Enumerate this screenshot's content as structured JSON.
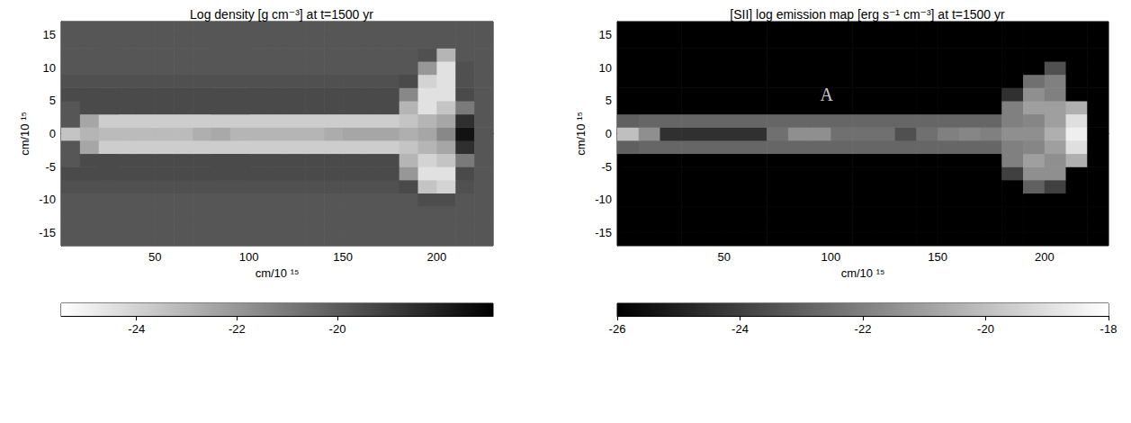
{
  "chart_data": [
    {
      "type": "heatmap",
      "title": "Log density [g cm⁻³] at t=1500 yr",
      "x_label": "cm/10 ¹⁵",
      "y_label": "cm/10 ¹⁵",
      "xlim": [
        0,
        230
      ],
      "ylim": [
        -17,
        17
      ],
      "xticks": [
        50,
        100,
        150,
        200
      ],
      "yticks": [
        -15,
        -10,
        -5,
        0,
        5,
        10,
        15
      ],
      "x_bins": [
        0,
        10,
        20,
        30,
        40,
        50,
        60,
        70,
        80,
        90,
        100,
        110,
        120,
        130,
        140,
        150,
        160,
        170,
        180,
        190,
        200,
        210,
        220,
        230
      ],
      "y_bins": [
        -17,
        -15,
        -13,
        -11,
        -9,
        -7,
        -5,
        -3,
        -1,
        1,
        3,
        5,
        7,
        9,
        11,
        13,
        15,
        17
      ],
      "values": [
        [
          -19.8,
          -19.8,
          -19.8,
          -19.8,
          -19.8,
          -19.8,
          -19.8,
          -19.8,
          -19.8,
          -19.8,
          -19.8,
          -19.8,
          -19.8,
          -19.8,
          -19.8,
          -19.8,
          -19.8,
          -19.8,
          -19.8,
          -19.8,
          -19.8,
          -19.8,
          -19.8
        ],
        [
          -19.8,
          -19.8,
          -19.8,
          -19.8,
          -19.8,
          -19.8,
          -19.8,
          -19.8,
          -19.8,
          -19.8,
          -19.8,
          -19.8,
          -19.8,
          -19.8,
          -19.8,
          -19.8,
          -19.8,
          -19.8,
          -19.8,
          -19.8,
          -19.8,
          -19.8,
          -19.8
        ],
        [
          -19.8,
          -19.8,
          -19.8,
          -19.8,
          -19.8,
          -19.8,
          -19.8,
          -19.8,
          -19.8,
          -19.8,
          -19.8,
          -19.8,
          -19.8,
          -19.8,
          -19.8,
          -19.8,
          -19.8,
          -19.8,
          -19.8,
          -19.8,
          -19.8,
          -19.8,
          -19.8
        ],
        [
          -19.8,
          -19.8,
          -19.8,
          -19.8,
          -19.8,
          -19.8,
          -19.8,
          -19.8,
          -19.8,
          -19.8,
          -19.8,
          -19.8,
          -19.8,
          -19.8,
          -19.8,
          -19.8,
          -19.8,
          -19.8,
          -19.8,
          -19.5,
          -19.5,
          -19.8,
          -19.8
        ],
        [
          -19.6,
          -19.6,
          -19.6,
          -19.6,
          -19.6,
          -19.6,
          -19.6,
          -19.6,
          -19.6,
          -19.6,
          -19.6,
          -19.6,
          -19.6,
          -19.6,
          -19.6,
          -19.6,
          -19.6,
          -19.6,
          -19.4,
          -23.5,
          -24,
          -19.6,
          -19.8
        ],
        [
          -19.4,
          -19.4,
          -19.4,
          -19.4,
          -19.4,
          -19.4,
          -19.4,
          -19.4,
          -19.4,
          -19.4,
          -19.4,
          -19.4,
          -19.4,
          -19.4,
          -19.4,
          -19.4,
          -19.4,
          -19.4,
          -22,
          -24.5,
          -24.5,
          -19.4,
          -19.8
        ],
        [
          -19.8,
          -19.4,
          -19.4,
          -19.4,
          -19.4,
          -19.4,
          -19.4,
          -19.4,
          -19.4,
          -19.4,
          -19.4,
          -19.4,
          -19.4,
          -19.4,
          -19.4,
          -19.4,
          -19.4,
          -19.4,
          -23,
          -24,
          -23.5,
          -21,
          -19.8
        ],
        [
          -19.8,
          -22.5,
          -23.8,
          -23.8,
          -23.8,
          -23.8,
          -23.8,
          -23.8,
          -23.8,
          -23.8,
          -23.8,
          -23.8,
          -23.8,
          -23.8,
          -23.8,
          -23.8,
          -23.8,
          -23.8,
          -23.5,
          -23,
          -22.5,
          -18.5,
          -19.8
        ],
        [
          -23.5,
          -23,
          -23.2,
          -23.2,
          -23.2,
          -23.2,
          -23.2,
          -22.8,
          -22.6,
          -23,
          -23,
          -23,
          -23,
          -23,
          -22.7,
          -22.5,
          -22.5,
          -22.5,
          -22.8,
          -22.5,
          -21.5,
          -17.5,
          -19.8
        ],
        [
          -19.8,
          -22.5,
          -23.8,
          -23.8,
          -23.8,
          -23.8,
          -23.8,
          -23.8,
          -23.8,
          -23.8,
          -23.8,
          -23.8,
          -23.8,
          -23.8,
          -23.8,
          -23.8,
          -23.8,
          -23.8,
          -23.5,
          -23,
          -22.5,
          -18.5,
          -19.8
        ],
        [
          -19.8,
          -19.4,
          -19.4,
          -19.4,
          -19.4,
          -19.4,
          -19.4,
          -19.4,
          -19.4,
          -19.4,
          -19.4,
          -19.4,
          -19.4,
          -19.4,
          -19.4,
          -19.4,
          -19.4,
          -19.4,
          -23,
          -24.5,
          -23.5,
          -21,
          -19.8
        ],
        [
          -19.4,
          -19.4,
          -19.4,
          -19.4,
          -19.4,
          -19.4,
          -19.4,
          -19.4,
          -19.4,
          -19.4,
          -19.4,
          -19.4,
          -19.4,
          -19.4,
          -19.4,
          -19.4,
          -19.4,
          -19.4,
          -21.5,
          -24.5,
          -24.5,
          -19.4,
          -19.8
        ],
        [
          -19.6,
          -19.6,
          -19.6,
          -19.6,
          -19.6,
          -19.6,
          -19.6,
          -19.6,
          -19.6,
          -19.6,
          -19.6,
          -19.6,
          -19.6,
          -19.6,
          -19.6,
          -19.6,
          -19.6,
          -19.6,
          -19.4,
          -24,
          -24.5,
          -19.6,
          -19.8
        ],
        [
          -19.8,
          -19.8,
          -19.8,
          -19.8,
          -19.8,
          -19.8,
          -19.8,
          -19.8,
          -19.8,
          -19.8,
          -19.8,
          -19.8,
          -19.8,
          -19.8,
          -19.8,
          -19.8,
          -19.8,
          -19.8,
          -19.8,
          -22,
          -24.5,
          -19.6,
          -19.8
        ],
        [
          -19.8,
          -19.8,
          -19.8,
          -19.8,
          -19.8,
          -19.8,
          -19.8,
          -19.8,
          -19.8,
          -19.8,
          -19.8,
          -19.8,
          -19.8,
          -19.8,
          -19.8,
          -19.8,
          -19.8,
          -19.8,
          -19.8,
          -19.6,
          -23,
          -19.8,
          -19.8
        ],
        [
          -19.8,
          -19.8,
          -19.8,
          -19.8,
          -19.8,
          -19.8,
          -19.8,
          -19.8,
          -19.8,
          -19.8,
          -19.8,
          -19.8,
          -19.8,
          -19.8,
          -19.8,
          -19.8,
          -19.8,
          -19.8,
          -19.8,
          -19.8,
          -19.8,
          -19.8,
          -19.8
        ],
        [
          -19.8,
          -19.8,
          -19.8,
          -19.8,
          -19.8,
          -19.8,
          -19.8,
          -19.8,
          -19.8,
          -19.8,
          -19.8,
          -19.8,
          -19.8,
          -19.8,
          -19.8,
          -19.8,
          -19.8,
          -19.8,
          -19.8,
          -19.8,
          -19.8,
          -19.8,
          -19.8
        ]
      ],
      "colors": [
        "#ffffff",
        "#000000"
      ],
      "colorbar": {
        "range": [
          -25.5,
          -16.9
        ],
        "ticks": [
          -24,
          -22,
          -20
        ]
      }
    },
    {
      "type": "heatmap",
      "title": "[SII] log emission map [erg s⁻¹ cm⁻³] at t=1500 yr",
      "x_label": "cm/10 ¹⁵",
      "y_label": "cm/10 ¹⁵",
      "xlim": [
        0,
        230
      ],
      "ylim": [
        -17,
        17
      ],
      "xticks": [
        50,
        100,
        150,
        200
      ],
      "yticks": [
        -15,
        -10,
        -5,
        0,
        5,
        10,
        15
      ],
      "x_bins": [
        0,
        10,
        20,
        30,
        40,
        50,
        60,
        70,
        80,
        90,
        100,
        110,
        120,
        130,
        140,
        150,
        160,
        170,
        180,
        190,
        200,
        210,
        220,
        230
      ],
      "y_bins": [
        -17,
        -15,
        -13,
        -11,
        -9,
        -7,
        -5,
        -3,
        -1,
        1,
        3,
        5,
        7,
        9,
        11,
        13,
        15,
        17
      ],
      "values": [
        [
          -26,
          -26,
          -26,
          -26,
          -26,
          -26,
          -26,
          -26,
          -26,
          -26,
          -26,
          -26,
          -26,
          -26,
          -26,
          -26,
          -26,
          -26,
          -26,
          -26,
          -26,
          -26,
          -26
        ],
        [
          -26,
          -26,
          -26,
          -26,
          -26,
          -26,
          -26,
          -26,
          -26,
          -26,
          -26,
          -26,
          -26,
          -26,
          -26,
          -26,
          -26,
          -26,
          -26,
          -26,
          -26,
          -26,
          -26
        ],
        [
          -26,
          -26,
          -26,
          -26,
          -26,
          -26,
          -26,
          -26,
          -26,
          -26,
          -26,
          -26,
          -26,
          -26,
          -26,
          -26,
          -26,
          -26,
          -26,
          -26,
          -26,
          -26,
          -26
        ],
        [
          -26,
          -26,
          -26,
          -26,
          -26,
          -26,
          -26,
          -26,
          -26,
          -26,
          -26,
          -26,
          -26,
          -26,
          -26,
          -26,
          -26,
          -26,
          -26,
          -26,
          -26,
          -26,
          -26
        ],
        [
          -26,
          -26,
          -26,
          -26,
          -26,
          -26,
          -26,
          -26,
          -26,
          -26,
          -26,
          -26,
          -26,
          -26,
          -26,
          -26,
          -26,
          -26,
          -26,
          -23,
          -24,
          -26,
          -26
        ],
        [
          -26,
          -26,
          -26,
          -26,
          -26,
          -26,
          -26,
          -26,
          -26,
          -26,
          -26,
          -26,
          -26,
          -26,
          -26,
          -26,
          -26,
          -26,
          -24,
          -21.5,
          -21.5,
          -26,
          -26
        ],
        [
          -26,
          -26,
          -26,
          -26,
          -26,
          -26,
          -26,
          -26,
          -26,
          -26,
          -26,
          -26,
          -26,
          -26,
          -26,
          -26,
          -26,
          -26,
          -22,
          -21,
          -21.5,
          -20.5,
          -26
        ],
        [
          -23,
          -22.8,
          -22.8,
          -22.8,
          -22.8,
          -22.8,
          -22.8,
          -22.8,
          -22.8,
          -22.8,
          -22.8,
          -22.8,
          -22.8,
          -22.8,
          -22.8,
          -22.8,
          -22.8,
          -22.8,
          -22,
          -21.8,
          -21,
          -19,
          -26
        ],
        [
          -20,
          -21.5,
          -24.5,
          -24.5,
          -24.5,
          -24.5,
          -24.5,
          -22.5,
          -21.5,
          -21.5,
          -22.5,
          -22.5,
          -22.5,
          -23.5,
          -22.5,
          -22,
          -21.8,
          -22,
          -21.5,
          -21.5,
          -20.5,
          -18.5,
          -26
        ],
        [
          -23,
          -22.8,
          -22.8,
          -22.8,
          -22.8,
          -22.8,
          -22.8,
          -22.8,
          -22.8,
          -22.8,
          -22.8,
          -22.8,
          -22.8,
          -22.8,
          -22.8,
          -22.8,
          -22.8,
          -22.8,
          -22,
          -21.8,
          -21,
          -19,
          -26
        ],
        [
          -26,
          -26,
          -26,
          -26,
          -26,
          -26,
          -26,
          -26,
          -26,
          -26,
          -26,
          -26,
          -26,
          -26,
          -26,
          -26,
          -26,
          -26,
          -22,
          -21,
          -21,
          -20.5,
          -26
        ],
        [
          -26,
          -26,
          -26,
          -26,
          -26,
          -26,
          -26,
          -26,
          -26,
          -26,
          -26,
          -26,
          -26,
          -26,
          -26,
          -26,
          -26,
          -26,
          -24.5,
          -21.5,
          -22,
          -26,
          -26
        ],
        [
          -26,
          -26,
          -26,
          -26,
          -26,
          -26,
          -26,
          -26,
          -26,
          -26,
          -26,
          -26,
          -26,
          -26,
          -26,
          -26,
          -26,
          -26,
          -26,
          -22.5,
          -22,
          -26,
          -26
        ],
        [
          -26,
          -26,
          -26,
          -26,
          -26,
          -26,
          -26,
          -26,
          -26,
          -26,
          -26,
          -26,
          -26,
          -26,
          -26,
          -26,
          -26,
          -26,
          -26,
          -26,
          -23.5,
          -26,
          -26
        ],
        [
          -26,
          -26,
          -26,
          -26,
          -26,
          -26,
          -26,
          -26,
          -26,
          -26,
          -26,
          -26,
          -26,
          -26,
          -26,
          -26,
          -26,
          -26,
          -26,
          -26,
          -26,
          -26,
          -26
        ],
        [
          -26,
          -26,
          -26,
          -26,
          -26,
          -26,
          -26,
          -26,
          -26,
          -26,
          -26,
          -26,
          -26,
          -26,
          -26,
          -26,
          -26,
          -26,
          -26,
          -26,
          -26,
          -26,
          -26
        ],
        [
          -26,
          -26,
          -26,
          -26,
          -26,
          -26,
          -26,
          -26,
          -26,
          -26,
          -26,
          -26,
          -26,
          -26,
          -26,
          -26,
          -26,
          -26,
          -26,
          -26,
          -26,
          -26,
          -26
        ]
      ],
      "colors": [
        "#000000",
        "#ffffff"
      ],
      "colorbar": {
        "range": [
          -26,
          -18
        ],
        "ticks": [
          -26,
          -24,
          -22,
          -20,
          -18
        ]
      },
      "annotations": [
        {
          "text": "A",
          "x": 98,
          "y": 6
        }
      ]
    }
  ]
}
